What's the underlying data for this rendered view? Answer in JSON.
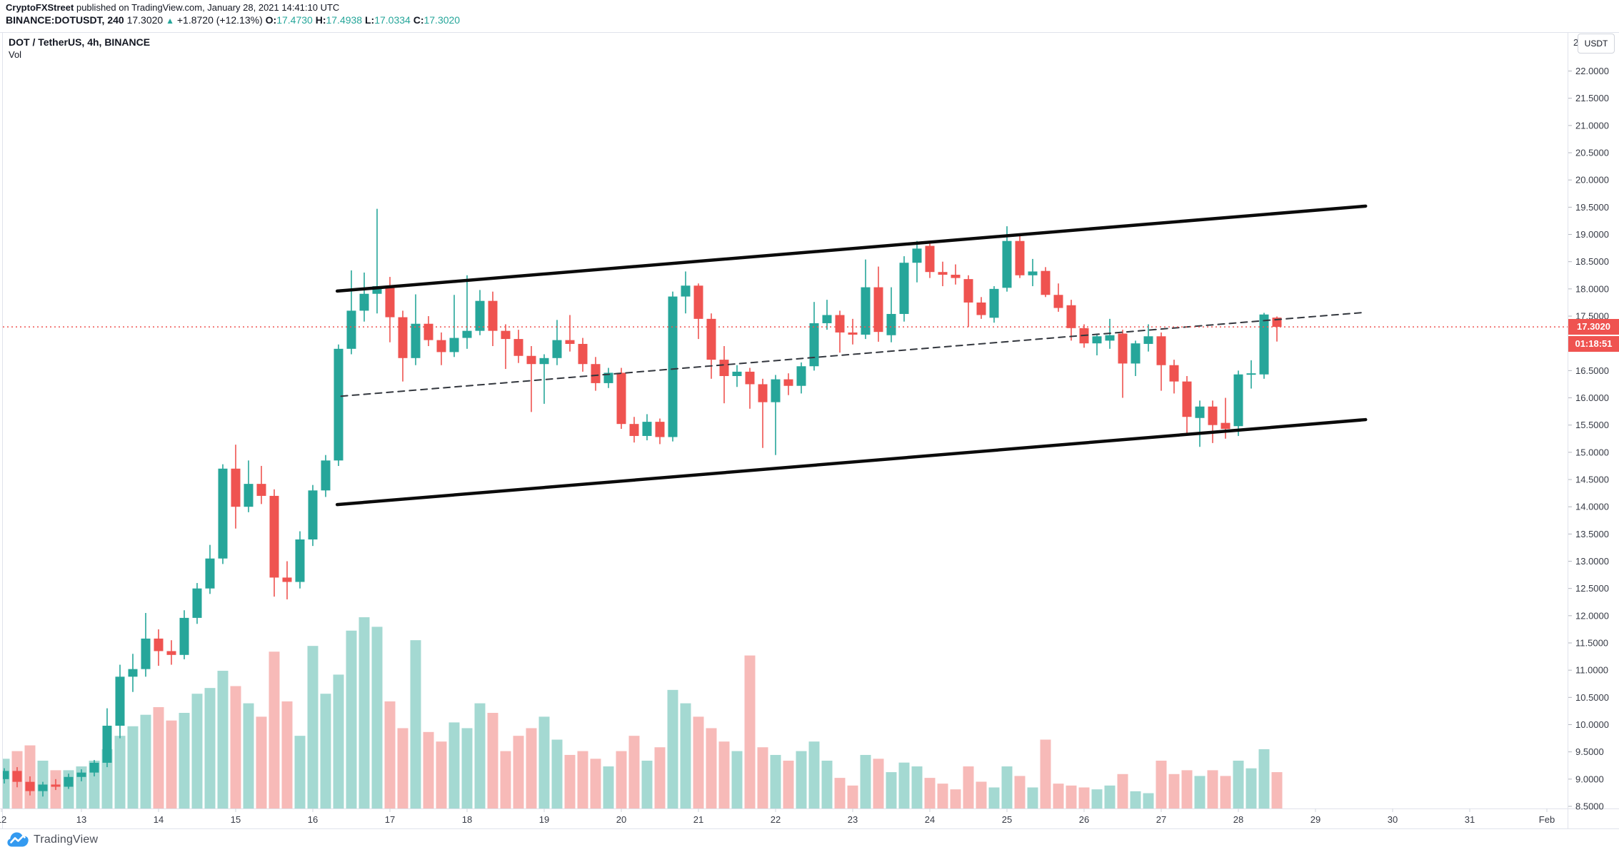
{
  "header": {
    "publisher": "CryptoFXStreet",
    "published_suffix": " published on TradingView.com, January 28, 2021 14:41:10 UTC",
    "symbol_line": "BINANCE:DOTUSDT, 240",
    "last_price": "17.3020",
    "direction_arrow": "▲",
    "change": "+1.8720 (+12.13%)",
    "o_label": "O:",
    "o_value": "17.4730",
    "h_label": "H:",
    "h_value": "17.4938",
    "l_label": "L:",
    "l_value": "17.0334",
    "c_label": "C:",
    "c_value": "17.3020"
  },
  "legend": {
    "title": "DOT / TetherUS, 4h, BINANCE",
    "indicator": "Vol"
  },
  "price_axis": {
    "currency_button": "USDT",
    "partial_top_label": "2",
    "labels": [
      "22.0000",
      "21.5000",
      "21.0000",
      "20.5000",
      "20.0000",
      "19.5000",
      "19.0000",
      "18.5000",
      "18.0000",
      "17.5000",
      "16.5000",
      "16.0000",
      "15.5000",
      "15.0000",
      "14.5000",
      "14.0000",
      "13.5000",
      "13.0000",
      "12.5000",
      "12.0000",
      "11.5000",
      "11.0000",
      "10.5000",
      "10.0000",
      "9.5000",
      "9.0000",
      "8.5000"
    ]
  },
  "time_axis": {
    "ticks": [
      {
        "label": "12",
        "k": -0.22
      },
      {
        "label": "13",
        "k": 6
      },
      {
        "label": "14",
        "k": 12
      },
      {
        "label": "15",
        "k": 18
      },
      {
        "label": "16",
        "k": 24
      },
      {
        "label": "17",
        "k": 30
      },
      {
        "label": "18",
        "k": 36
      },
      {
        "label": "19",
        "k": 42
      },
      {
        "label": "20",
        "k": 48
      },
      {
        "label": "21",
        "k": 54
      },
      {
        "label": "22",
        "k": 60
      },
      {
        "label": "23",
        "k": 66
      },
      {
        "label": "24",
        "k": 72
      },
      {
        "label": "25",
        "k": 78
      },
      {
        "label": "26",
        "k": 84
      },
      {
        "label": "27",
        "k": 90
      },
      {
        "label": "28",
        "k": 96
      },
      {
        "label": "29",
        "k": 102
      },
      {
        "label": "30",
        "k": 108
      },
      {
        "label": "31",
        "k": 114
      },
      {
        "label": "Feb",
        "k": 120
      }
    ]
  },
  "price_tag": {
    "value": "17.3020",
    "countdown": "01:18:51"
  },
  "footer": {
    "brand": "TradingView"
  },
  "colors": {
    "up": "#26a69a",
    "down": "#ef5350",
    "vol_up": "#a4d9d2",
    "vol_down": "#f7bab8",
    "axis_text": "#363a45",
    "channel": "#0b0b0b",
    "mid_dash": "#33373e",
    "price_line": "#ef5350",
    "tag_bg": "#ef5350"
  },
  "chart_data": {
    "type": "candlestick+volume",
    "title": "DOT / TetherUS, 4h, BINANCE",
    "exchange": "BINANCE",
    "interval": "4h",
    "ylabel_currency": "USDT",
    "axis_range": {
      "price_min": 8.5,
      "price_max": 22.5,
      "step": 0.5
    },
    "grid": false,
    "current_price": 17.302,
    "candle_format": [
      "time(Jan day hour)",
      "open",
      "high",
      "low",
      "close",
      "relative_volume"
    ],
    "candles": [
      [
        "12 00",
        9.0,
        9.2,
        8.92,
        9.15,
        0.26
      ],
      [
        "12 04",
        9.15,
        9.22,
        8.85,
        8.95,
        0.3
      ],
      [
        "12 08",
        8.95,
        9.05,
        8.7,
        8.78,
        0.33
      ],
      [
        "12 12",
        8.78,
        8.95,
        8.68,
        8.9,
        0.25
      ],
      [
        "12 16",
        8.9,
        9.0,
        8.8,
        8.86,
        0.2
      ],
      [
        "12 20",
        8.86,
        9.1,
        8.82,
        9.04,
        0.2
      ],
      [
        "13 00",
        9.04,
        9.18,
        8.96,
        9.12,
        0.22
      ],
      [
        "13 04",
        9.12,
        9.35,
        9.05,
        9.3,
        0.25
      ],
      [
        "13 08",
        9.3,
        10.3,
        9.22,
        9.98,
        0.31
      ],
      [
        "13 12",
        9.98,
        11.1,
        9.75,
        10.88,
        0.38
      ],
      [
        "13 16",
        10.88,
        11.3,
        10.6,
        11.02,
        0.43
      ],
      [
        "13 20",
        11.02,
        12.05,
        10.88,
        11.58,
        0.49
      ],
      [
        "14 00",
        11.58,
        11.75,
        11.08,
        11.35,
        0.53
      ],
      [
        "14 04",
        11.35,
        11.55,
        11.1,
        11.28,
        0.46
      ],
      [
        "14 08",
        11.28,
        12.1,
        11.2,
        11.96,
        0.5
      ],
      [
        "14 12",
        11.96,
        12.6,
        11.85,
        12.5,
        0.6
      ],
      [
        "14 16",
        12.5,
        13.3,
        12.4,
        13.05,
        0.63
      ],
      [
        "14 20",
        13.05,
        14.78,
        12.95,
        14.7,
        0.72
      ],
      [
        "15 00",
        14.7,
        15.14,
        13.6,
        14.0,
        0.64
      ],
      [
        "15 04",
        14.0,
        14.85,
        13.9,
        14.42,
        0.55
      ],
      [
        "15 08",
        14.42,
        14.75,
        14.05,
        14.2,
        0.48
      ],
      [
        "15 12",
        14.2,
        14.32,
        12.35,
        12.7,
        0.82
      ],
      [
        "15 16",
        12.7,
        13.0,
        12.3,
        12.62,
        0.56
      ],
      [
        "15 20",
        12.62,
        13.55,
        12.5,
        13.4,
        0.38
      ],
      [
        "16 00",
        13.4,
        14.4,
        13.28,
        14.3,
        0.85
      ],
      [
        "16 04",
        14.3,
        14.95,
        14.18,
        14.85,
        0.6
      ],
      [
        "16 08",
        14.85,
        16.98,
        14.75,
        16.9,
        0.7
      ],
      [
        "16 12",
        16.9,
        18.34,
        16.8,
        17.6,
        0.93
      ],
      [
        "16 16",
        17.6,
        18.3,
        17.4,
        17.91,
        1.0
      ],
      [
        "16 20",
        17.91,
        19.47,
        17.55,
        18.05,
        0.95
      ],
      [
        "17 00",
        18.05,
        18.22,
        17.02,
        17.48,
        0.56
      ],
      [
        "17 04",
        17.48,
        17.6,
        16.3,
        16.73,
        0.42
      ],
      [
        "17 08",
        16.73,
        17.9,
        16.6,
        17.36,
        0.88
      ],
      [
        "17 12",
        17.36,
        17.5,
        16.95,
        17.06,
        0.4
      ],
      [
        "17 16",
        17.06,
        17.2,
        16.6,
        16.84,
        0.35
      ],
      [
        "17 20",
        16.84,
        17.89,
        16.75,
        17.1,
        0.45
      ],
      [
        "18 00",
        17.1,
        18.25,
        16.9,
        17.23,
        0.42
      ],
      [
        "18 04",
        17.23,
        17.98,
        17.15,
        17.78,
        0.55
      ],
      [
        "18 08",
        17.78,
        17.95,
        16.95,
        17.23,
        0.5
      ],
      [
        "18 12",
        17.23,
        17.35,
        16.53,
        17.08,
        0.3
      ],
      [
        "18 16",
        17.08,
        17.25,
        16.64,
        16.77,
        0.38
      ],
      [
        "18 20",
        16.77,
        16.95,
        15.74,
        16.62,
        0.42
      ],
      [
        "19 00",
        16.62,
        16.8,
        15.89,
        16.73,
        0.48
      ],
      [
        "19 04",
        16.73,
        17.43,
        16.6,
        17.06,
        0.36
      ],
      [
        "19 08",
        17.06,
        17.52,
        16.85,
        16.99,
        0.28
      ],
      [
        "19 12",
        16.99,
        17.1,
        16.48,
        16.62,
        0.3
      ],
      [
        "19 16",
        16.62,
        16.75,
        16.13,
        16.27,
        0.26
      ],
      [
        "19 20",
        16.27,
        16.55,
        16.18,
        16.46,
        0.22
      ],
      [
        "20 00",
        16.46,
        16.55,
        15.43,
        15.52,
        0.3
      ],
      [
        "20 04",
        15.52,
        15.65,
        15.18,
        15.3,
        0.38
      ],
      [
        "20 08",
        15.3,
        15.7,
        15.22,
        15.56,
        0.25
      ],
      [
        "20 12",
        15.56,
        15.62,
        15.15,
        15.28,
        0.32
      ],
      [
        "20 16",
        15.28,
        17.95,
        15.2,
        17.86,
        0.62
      ],
      [
        "20 20",
        17.86,
        18.32,
        17.55,
        18.06,
        0.55
      ],
      [
        "21 00",
        18.06,
        18.1,
        17.08,
        17.45,
        0.48
      ],
      [
        "21 04",
        17.45,
        17.55,
        16.35,
        16.7,
        0.42
      ],
      [
        "21 08",
        16.7,
        16.95,
        15.9,
        16.4,
        0.35
      ],
      [
        "21 12",
        16.4,
        16.6,
        16.2,
        16.48,
        0.3
      ],
      [
        "21 16",
        16.48,
        16.55,
        15.8,
        16.25,
        0.8
      ],
      [
        "21 20",
        16.25,
        16.35,
        15.08,
        15.92,
        0.32
      ],
      [
        "22 00",
        15.92,
        16.42,
        14.95,
        16.34,
        0.28
      ],
      [
        "22 04",
        16.34,
        16.45,
        16.05,
        16.22,
        0.25
      ],
      [
        "22 08",
        16.22,
        16.65,
        16.08,
        16.58,
        0.3
      ],
      [
        "22 12",
        16.58,
        17.76,
        16.5,
        17.37,
        0.35
      ],
      [
        "22 16",
        17.37,
        17.8,
        17.25,
        17.52,
        0.25
      ],
      [
        "22 20",
        17.52,
        17.6,
        16.83,
        17.2,
        0.16
      ],
      [
        "23 00",
        17.2,
        17.45,
        16.98,
        17.16,
        0.12
      ],
      [
        "23 04",
        17.16,
        18.54,
        17.08,
        18.03,
        0.28
      ],
      [
        "23 08",
        18.03,
        18.41,
        17.03,
        17.21,
        0.26
      ],
      [
        "23 12",
        17.15,
        18.03,
        17.02,
        17.54,
        0.19
      ],
      [
        "23 16",
        17.54,
        18.6,
        17.4,
        18.48,
        0.24
      ],
      [
        "23 20",
        18.48,
        18.88,
        18.12,
        18.74,
        0.22
      ],
      [
        "24 00",
        18.79,
        18.85,
        18.2,
        18.31,
        0.16
      ],
      [
        "24 04",
        18.31,
        18.5,
        18.05,
        18.26,
        0.13
      ],
      [
        "24 08",
        18.26,
        18.45,
        18.08,
        18.2,
        0.1
      ],
      [
        "24 12",
        18.18,
        18.25,
        17.3,
        17.75,
        0.22
      ],
      [
        "24 16",
        17.75,
        17.85,
        17.45,
        17.52,
        0.14
      ],
      [
        "24 20",
        17.47,
        18.05,
        17.38,
        18.0,
        0.11
      ],
      [
        "25 00",
        18.02,
        19.15,
        17.95,
        18.88,
        0.22
      ],
      [
        "25 04",
        18.88,
        18.98,
        18.2,
        18.25,
        0.17
      ],
      [
        "25 08",
        18.25,
        18.55,
        18.05,
        18.32,
        0.11
      ],
      [
        "25 12",
        18.33,
        18.4,
        17.85,
        17.89,
        0.36
      ],
      [
        "25 16",
        17.89,
        18.1,
        17.58,
        17.65,
        0.13
      ],
      [
        "25 20",
        17.7,
        17.8,
        17.05,
        17.28,
        0.12
      ],
      [
        "26 00",
        17.28,
        17.35,
        16.92,
        17.0,
        0.11
      ],
      [
        "26 04",
        17.0,
        17.18,
        16.78,
        17.13,
        0.1
      ],
      [
        "26 08",
        17.05,
        17.45,
        16.9,
        17.15,
        0.12
      ],
      [
        "26 12",
        17.18,
        17.25,
        16.0,
        16.63,
        0.18
      ],
      [
        "26 16",
        16.63,
        17.05,
        16.4,
        17.0,
        0.09
      ],
      [
        "26 20",
        16.99,
        17.35,
        16.85,
        17.13,
        0.08
      ],
      [
        "27 00",
        17.13,
        17.2,
        16.13,
        16.6,
        0.25
      ],
      [
        "27 04",
        16.6,
        16.7,
        16.08,
        16.3,
        0.18
      ],
      [
        "27 08",
        16.3,
        16.4,
        15.35,
        15.65,
        0.2
      ],
      [
        "27 12",
        15.63,
        15.95,
        15.1,
        15.84,
        0.17
      ],
      [
        "27 16",
        15.84,
        15.95,
        15.17,
        15.5,
        0.2
      ],
      [
        "27 20",
        15.54,
        16.0,
        15.25,
        15.43,
        0.17
      ],
      [
        "28 00",
        15.48,
        16.5,
        15.3,
        16.43,
        0.25
      ],
      [
        "28 04",
        16.43,
        16.69,
        16.17,
        16.45,
        0.21
      ],
      [
        "28 08",
        16.43,
        17.56,
        16.35,
        17.53,
        0.31
      ],
      [
        "28 12",
        17.473,
        17.4938,
        17.0334,
        17.302,
        0.19
      ]
    ],
    "channel": {
      "upper": {
        "k1": 25.9,
        "p1": 17.96,
        "k2": 105.9,
        "p2": 19.52
      },
      "lower": {
        "k1": 25.9,
        "p1": 14.04,
        "k2": 105.9,
        "p2": 15.6
      },
      "middle": {
        "k1": 26.2,
        "p1": 16.03,
        "k2": 105.9,
        "p2": 17.57
      }
    }
  }
}
